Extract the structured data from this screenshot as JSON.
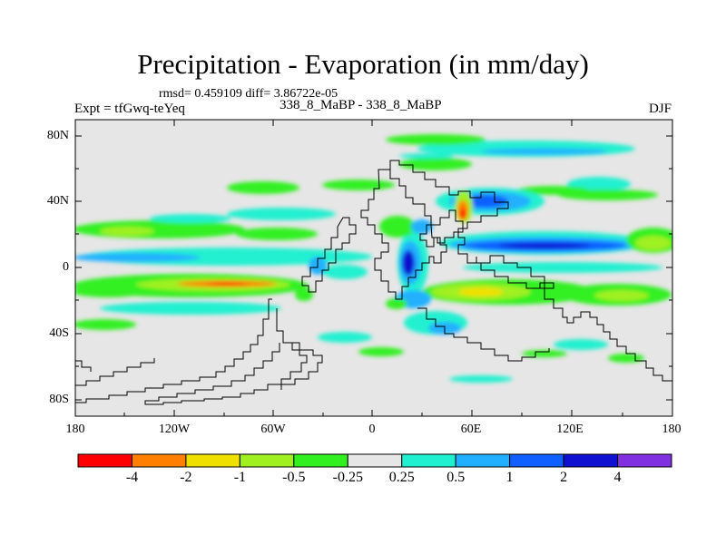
{
  "title": "Precipitation - Evaporation (in mm/day)",
  "stats": {
    "rmsd_label": "rmsd= 0.459109",
    "diff_label": "diff= 3.86722e-05"
  },
  "expt": "Expt = tfGwq-teYeq",
  "case_label": "338_8_MaBP - 338_8_MaBP",
  "season": "DJF",
  "lat_ticks": [
    "80N",
    "40N",
    "0",
    "40S",
    "80S"
  ],
  "lon_ticks": [
    "180",
    "120W",
    "60W",
    "0",
    "60E",
    "120E",
    "180"
  ],
  "colorbar": {
    "colors": [
      "#ff0000",
      "#ff8000",
      "#f0e000",
      "#a0f020",
      "#30f020",
      "#e6e6e6",
      "#20f0d0",
      "#20b0ff",
      "#1060ff",
      "#1010d0",
      "#8030e0"
    ],
    "labels": [
      "-4",
      "-2",
      "-1",
      "-0.5",
      "-0.25",
      "0.25",
      "0.5",
      "1",
      "2",
      "4"
    ]
  }
}
